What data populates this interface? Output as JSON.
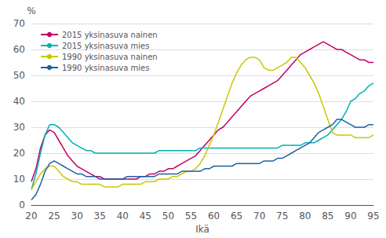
{
  "chart_data": {
    "type": "line",
    "xlabel": "Ikä",
    "ylabel": "%",
    "x": [
      20,
      21,
      22,
      23,
      24,
      25,
      26,
      27,
      28,
      29,
      30,
      31,
      32,
      33,
      34,
      35,
      36,
      37,
      38,
      39,
      40,
      41,
      42,
      43,
      44,
      45,
      46,
      47,
      48,
      49,
      50,
      51,
      52,
      53,
      54,
      55,
      56,
      57,
      58,
      59,
      60,
      61,
      62,
      63,
      64,
      65,
      66,
      67,
      68,
      69,
      70,
      71,
      72,
      73,
      74,
      75,
      76,
      77,
      78,
      79,
      80,
      81,
      82,
      83,
      84,
      85,
      86,
      87,
      88,
      89,
      90,
      91,
      92,
      93,
      94,
      95
    ],
    "series": [
      {
        "name": "2015 yksinasuva nainen",
        "color": "#c0006a",
        "values": [
          9,
          14,
          22,
          27,
          29,
          28,
          25,
          22,
          19,
          17,
          15,
          14,
          13,
          12,
          11,
          11,
          10,
          10,
          10,
          10,
          10,
          10,
          10,
          10,
          11,
          11,
          12,
          12,
          13,
          13,
          14,
          14,
          15,
          16,
          17,
          18,
          19,
          21,
          23,
          25,
          27,
          29,
          30,
          32,
          34,
          36,
          38,
          40,
          42,
          43,
          44,
          45,
          46,
          47,
          48,
          50,
          52,
          54,
          56,
          58,
          59,
          60,
          61,
          62,
          63,
          62,
          61,
          60,
          60,
          59,
          58,
          57,
          56,
          56,
          55,
          55
        ]
      },
      {
        "name": "2015 yksinasuva mies",
        "color": "#00b0b0",
        "values": [
          6,
          12,
          20,
          27,
          31,
          31,
          30,
          28,
          26,
          24,
          23,
          22,
          21,
          21,
          20,
          20,
          20,
          20,
          20,
          20,
          20,
          20,
          20,
          20,
          20,
          20,
          20,
          20,
          21,
          21,
          21,
          21,
          21,
          21,
          21,
          21,
          21,
          22,
          22,
          22,
          22,
          22,
          22,
          22,
          22,
          22,
          22,
          22,
          22,
          22,
          22,
          22,
          22,
          22,
          22,
          23,
          23,
          23,
          23,
          23,
          24,
          24,
          24,
          25,
          26,
          27,
          29,
          31,
          33,
          36,
          40,
          41,
          43,
          44,
          46,
          47
        ]
      },
      {
        "name": "1990 yksinasuva nainen",
        "color": "#c8c800",
        "values": [
          6,
          9,
          12,
          14,
          15,
          15,
          13,
          11,
          10,
          9,
          9,
          8,
          8,
          8,
          8,
          8,
          7,
          7,
          7,
          7,
          8,
          8,
          8,
          8,
          8,
          9,
          9,
          9,
          10,
          10,
          10,
          11,
          11,
          12,
          13,
          13,
          14,
          16,
          19,
          23,
          27,
          32,
          37,
          42,
          47,
          51,
          54,
          56,
          57,
          57,
          56,
          53,
          52,
          52,
          53,
          54,
          55,
          57,
          57,
          55,
          53,
          50,
          47,
          43,
          38,
          33,
          28,
          27,
          27,
          27,
          27,
          26,
          26,
          26,
          26,
          27
        ]
      },
      {
        "name": "1990 yksinasuva mies",
        "color": "#1f5fa6",
        "values": [
          2,
          4,
          8,
          13,
          16,
          17,
          16,
          15,
          14,
          13,
          12,
          12,
          11,
          11,
          11,
          10,
          10,
          10,
          10,
          10,
          10,
          11,
          11,
          11,
          11,
          11,
          11,
          11,
          12,
          12,
          12,
          12,
          12,
          13,
          13,
          13,
          13,
          13,
          14,
          14,
          15,
          15,
          15,
          15,
          15,
          16,
          16,
          16,
          16,
          16,
          16,
          17,
          17,
          17,
          18,
          18,
          19,
          20,
          21,
          22,
          23,
          24,
          26,
          28,
          29,
          30,
          31,
          33,
          33,
          32,
          31,
          30,
          30,
          30,
          31,
          31
        ]
      }
    ],
    "xlim": [
      20,
      95
    ],
    "ylim": [
      0,
      70
    ],
    "xticks": [
      20,
      25,
      30,
      35,
      40,
      45,
      50,
      55,
      60,
      65,
      70,
      75,
      80,
      85,
      90,
      95
    ],
    "yticks": [
      0,
      10,
      20,
      30,
      40,
      50,
      60,
      70
    ],
    "grid": true,
    "legend": "upper left"
  }
}
